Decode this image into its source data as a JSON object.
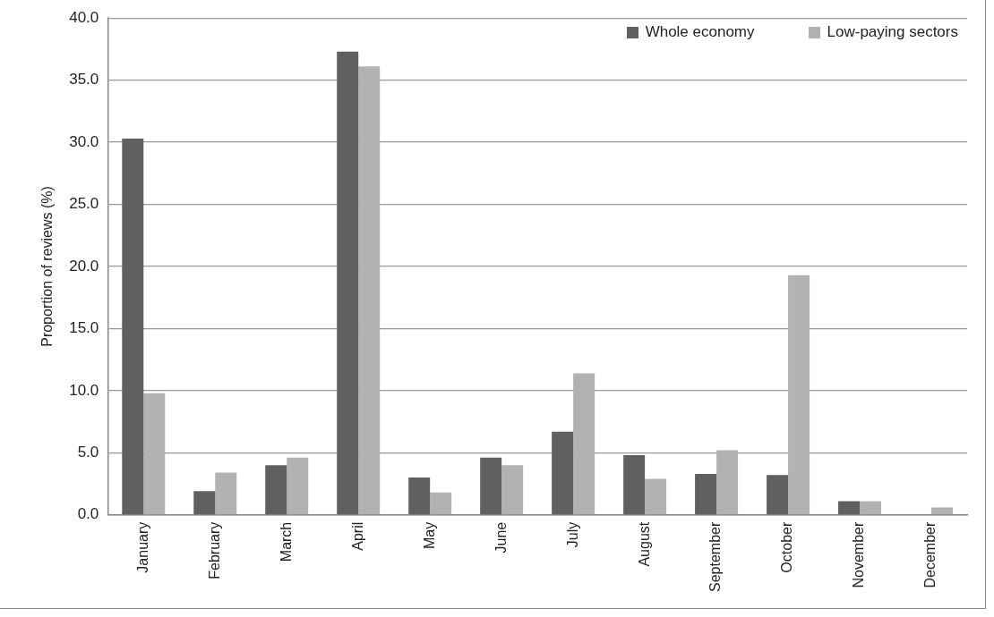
{
  "chart_data": {
    "type": "bar",
    "ylabel": "Proportion of reviews (%)",
    "categories": [
      "January",
      "February",
      "March",
      "April",
      "May",
      "June",
      "July",
      "August",
      "September",
      "October",
      "November",
      "December"
    ],
    "series": [
      {
        "name": "Whole economy",
        "color": "#606060",
        "values": [
          30.3,
          1.9,
          4.0,
          37.3,
          3.0,
          4.6,
          6.7,
          4.8,
          3.3,
          3.2,
          1.1,
          0
        ]
      },
      {
        "name": "Low-paying sectors",
        "color": "#b2b2b2",
        "values": [
          9.8,
          3.4,
          4.6,
          36.1,
          1.8,
          4.0,
          11.4,
          2.9,
          5.2,
          19.3,
          1.1,
          0.6
        ]
      }
    ],
    "ylim": [
      0,
      40
    ],
    "yticks": [
      {
        "value": 0,
        "label": "0.0"
      },
      {
        "value": 5,
        "label": "5.0"
      },
      {
        "value": 10,
        "label": "10.0"
      },
      {
        "value": 15,
        "label": "15.0"
      },
      {
        "value": 20,
        "label": "20.0"
      },
      {
        "value": 25,
        "label": "25.0"
      },
      {
        "value": 30,
        "label": "30.0"
      },
      {
        "value": 35,
        "label": "35.0"
      },
      {
        "value": 40,
        "label": "40.0"
      }
    ],
    "grid": "y",
    "legend": "top right"
  }
}
